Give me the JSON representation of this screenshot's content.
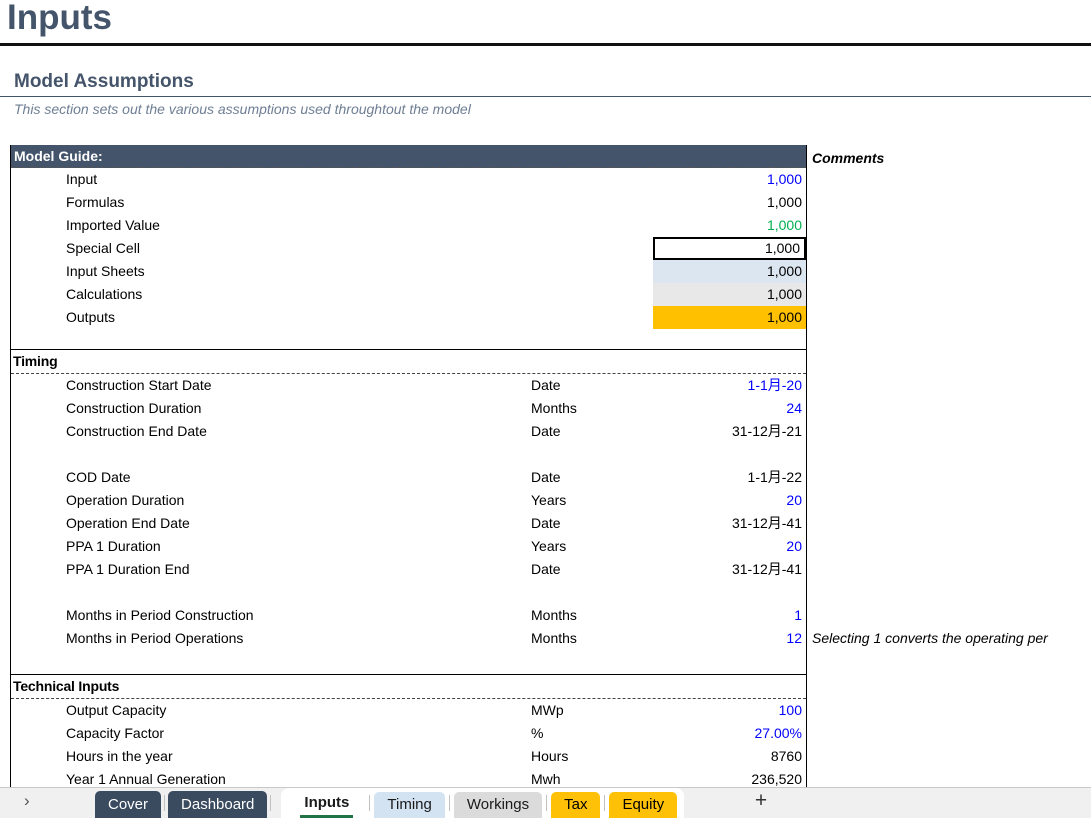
{
  "page": {
    "title": "Inputs"
  },
  "section": {
    "heading": "Model Assumptions",
    "subtitle": "This section sets out the various assumptions used throughtout the model"
  },
  "comments": {
    "header": "Comments"
  },
  "model_guide": {
    "header": "Model Guide:",
    "rows": [
      {
        "label": "Input",
        "value": "1,000",
        "style": "input"
      },
      {
        "label": "Formulas",
        "value": "1,000",
        "style": "formula"
      },
      {
        "label": "Imported Value",
        "value": "1,000",
        "style": "imported"
      },
      {
        "label": "Special Cell",
        "value": "1,000",
        "style": "special"
      },
      {
        "label": "Input Sheets",
        "value": "1,000",
        "style": "sheet"
      },
      {
        "label": "Calculations",
        "value": "1,000",
        "style": "calc"
      },
      {
        "label": "Outputs",
        "value": "1,000",
        "style": "output"
      }
    ]
  },
  "sections": [
    {
      "title": "Timing",
      "rows": [
        {
          "label": "Construction Start Date",
          "unit": "Date",
          "value": "1-1月-20",
          "color": "blue"
        },
        {
          "label": "Construction Duration",
          "unit": "Months",
          "value": "24",
          "color": "blue"
        },
        {
          "label": "Construction End Date",
          "unit": "Date",
          "value": "31-12月-21",
          "color": "black"
        },
        {
          "blank": true
        },
        {
          "label": "COD Date",
          "unit": "Date",
          "value": "1-1月-22",
          "color": "black"
        },
        {
          "label": "Operation Duration",
          "unit": "Years",
          "value": "20",
          "color": "blue"
        },
        {
          "label": "Operation End Date",
          "unit": "Date",
          "value": "31-12月-41",
          "color": "black"
        },
        {
          "label": "PPA 1 Duration",
          "unit": "Years",
          "value": "20",
          "color": "blue"
        },
        {
          "label": "PPA 1 Duration End",
          "unit": "Date",
          "value": "31-12月-41",
          "color": "black"
        },
        {
          "blank": true
        },
        {
          "label": "Months in Period Construction",
          "unit": "Months",
          "value": "1",
          "color": "blue"
        },
        {
          "label": "Months in Period Operations",
          "unit": "Months",
          "value": "12",
          "color": "blue",
          "comment": "Selecting 1 converts the operating per"
        }
      ]
    },
    {
      "title": "Technical Inputs",
      "rows": [
        {
          "label": "Output Capacity",
          "unit": "MWp",
          "value": "100",
          "color": "blue"
        },
        {
          "label": "Capacity Factor",
          "unit": "%",
          "value": "27.00%",
          "color": "blue"
        },
        {
          "label": "Hours in the year",
          "unit": "Hours",
          "value": "8760",
          "color": "black"
        },
        {
          "label": "Year 1 Annual Generation",
          "unit": "Mwh",
          "value": "236,520",
          "color": "black"
        }
      ]
    }
  ],
  "tabbar": {
    "nav_icon": "›",
    "tabs": [
      {
        "label": "Cover",
        "style": "dark"
      },
      {
        "label": "Dashboard",
        "style": "dark"
      },
      {
        "label": "Inputs",
        "style": "active"
      },
      {
        "label": "Timing",
        "style": "blue"
      },
      {
        "label": "Workings",
        "style": "gray"
      },
      {
        "label": "Tax",
        "style": "amber"
      },
      {
        "label": "Equity",
        "style": "amber"
      }
    ],
    "add_label": "+"
  },
  "colors": {
    "slate": "#44546A",
    "value-blue": "#0000FF",
    "value-green": "#00B050",
    "cell-sheet": "#DCE6F1",
    "cell-calc": "#E8E8E8",
    "cell-output": "#FFC000",
    "tab-dark": "#3A4A5F",
    "tab-blue": "#D3E3F2",
    "tab-gray": "#DBDBDB",
    "tab-amber": "#FFC107",
    "active-underline": "#217346"
  }
}
